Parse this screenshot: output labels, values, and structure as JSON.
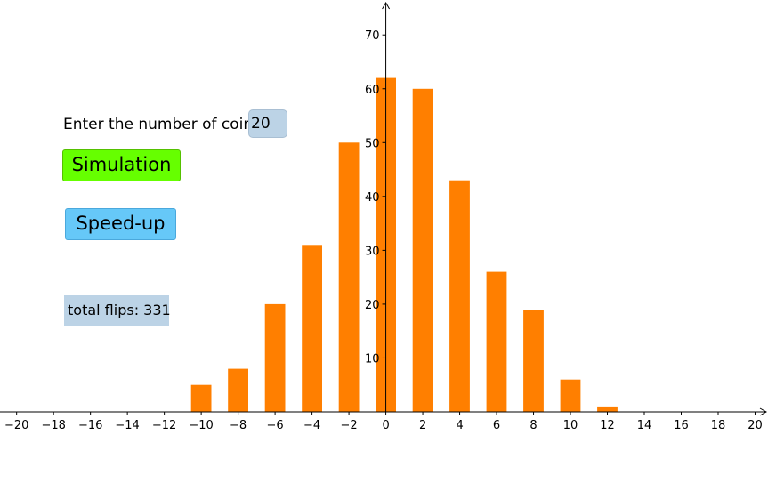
{
  "controls": {
    "coins_label": "Enter the number of coins",
    "coins_value": "20",
    "simulation_label": "Simulation",
    "speedup_label": "Speed-up",
    "total_flips": "total flips: 331"
  },
  "colors": {
    "bar": "#ff7f00",
    "simulation_button": "#66ff00",
    "speedup_button": "#66c8f8",
    "input_background": "#bcd3e6"
  },
  "chart_data": {
    "type": "bar",
    "x": [
      -10,
      -8,
      -6,
      -4,
      -2,
      0,
      2,
      4,
      6,
      8,
      10,
      12
    ],
    "values": [
      5,
      8,
      20,
      31,
      50,
      62,
      60,
      43,
      26,
      19,
      6,
      1
    ],
    "x_ticks": [
      -20,
      -18,
      -16,
      -14,
      -12,
      -10,
      -8,
      -6,
      -4,
      -2,
      0,
      2,
      4,
      6,
      8,
      10,
      12,
      14,
      16,
      18,
      20
    ],
    "y_ticks": [
      10,
      20,
      30,
      40,
      50,
      60,
      70
    ],
    "xlim": [
      -20.9,
      20.7
    ],
    "ylim": [
      0,
      74
    ],
    "grid": false
  }
}
